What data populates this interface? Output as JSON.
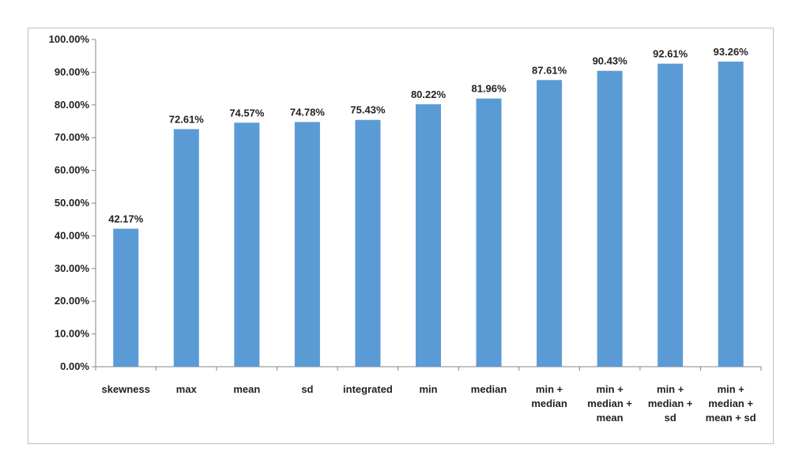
{
  "chart_data": {
    "type": "bar",
    "title": "",
    "xlabel": "",
    "ylabel": "",
    "ylim": [
      0,
      100
    ],
    "yticks": [
      "0.00%",
      "10.00%",
      "20.00%",
      "30.00%",
      "40.00%",
      "50.00%",
      "60.00%",
      "70.00%",
      "80.00%",
      "90.00%",
      "100.00%"
    ],
    "categories": [
      [
        "skewness"
      ],
      [
        "max"
      ],
      [
        "mean"
      ],
      [
        "sd"
      ],
      [
        "integrated"
      ],
      [
        "min"
      ],
      [
        "median"
      ],
      [
        "min +",
        "median"
      ],
      [
        "min +",
        "median +",
        "mean"
      ],
      [
        "min +",
        "median +",
        "sd"
      ],
      [
        "min +",
        "median +",
        "mean + sd"
      ]
    ],
    "values": [
      42.17,
      72.61,
      74.57,
      74.78,
      75.43,
      80.22,
      81.96,
      87.61,
      90.43,
      92.61,
      93.26
    ],
    "data_labels": [
      "42.17%",
      "72.61%",
      "74.57%",
      "74.78%",
      "75.43%",
      "80.22%",
      "81.96%",
      "87.61%",
      "90.43%",
      "92.61%",
      "93.26%"
    ],
    "bar_color": "#5b9bd5",
    "grid": false,
    "legend": "none"
  }
}
